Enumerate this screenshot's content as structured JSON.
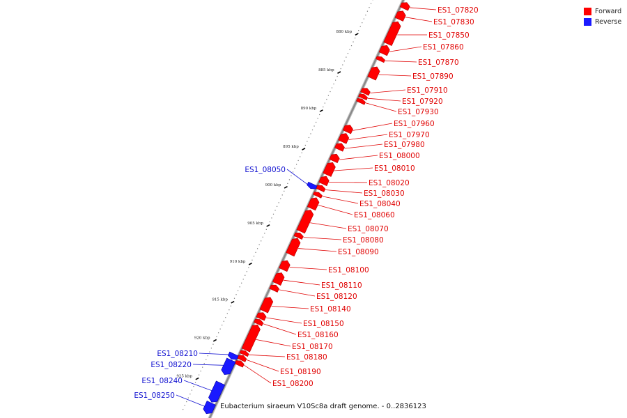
{
  "colors": {
    "forward": "#ff0000",
    "reverse": "#1a1aff",
    "backbone": "#888888"
  },
  "legend": [
    {
      "label": "Forward",
      "color": "#ff0000"
    },
    {
      "label": "Reverse",
      "color": "#1a1aff"
    }
  ],
  "caption": "Eubacterium siraeum V10Sc8a draft genome. - 0..2836123",
  "ticks": [
    {
      "pos": 880,
      "label": "880 kbp"
    },
    {
      "pos": 885,
      "label": "885 kbp"
    },
    {
      "pos": 890,
      "label": "890 kbp"
    },
    {
      "pos": 895,
      "label": "895 kbp"
    },
    {
      "pos": 900,
      "label": "900 kbp"
    },
    {
      "pos": 905,
      "label": "905 kbp"
    },
    {
      "pos": 910,
      "label": "910 kbp"
    },
    {
      "pos": 915,
      "label": "915 kbp"
    },
    {
      "pos": 920,
      "label": "920 kbp"
    },
    {
      "pos": 925,
      "label": "925 kbp"
    }
  ],
  "genes": [
    {
      "id": "ES1_07820",
      "strand": "forward",
      "start": 874.1,
      "end": 874.9
    },
    {
      "id": "ES1_07830",
      "strand": "forward",
      "start": 875.2,
      "end": 876.3
    },
    {
      "id": "ES1_07850",
      "strand": "forward",
      "start": 876.6,
      "end": 879.5
    },
    {
      "id": "ES1_07860",
      "strand": "forward",
      "start": 879.7,
      "end": 880.8
    },
    {
      "id": "ES1_07870",
      "strand": "forward",
      "start": 881.2,
      "end": 881.7
    },
    {
      "id": "ES1_07890",
      "strand": "forward",
      "start": 882.5,
      "end": 884.0
    },
    {
      "id": "ES1_07910",
      "strand": "forward",
      "start": 885.3,
      "end": 886.0
    },
    {
      "id": "ES1_07920",
      "strand": "forward",
      "start": 886.1,
      "end": 886.6
    },
    {
      "id": "ES1_07930",
      "strand": "forward",
      "start": 886.7,
      "end": 887.2
    },
    {
      "id": "ES1_07960",
      "strand": "forward",
      "start": 890.1,
      "end": 891.0
    },
    {
      "id": "ES1_07970",
      "strand": "forward",
      "start": 891.2,
      "end": 892.3
    },
    {
      "id": "ES1_07980",
      "strand": "forward",
      "start": 892.5,
      "end": 893.3
    },
    {
      "id": "ES1_08000",
      "strand": "forward",
      "start": 893.9,
      "end": 894.8
    },
    {
      "id": "ES1_08010",
      "strand": "forward",
      "start": 895.0,
      "end": 896.6
    },
    {
      "id": "ES1_08020",
      "strand": "forward",
      "start": 896.8,
      "end": 897.8
    },
    {
      "id": "ES1_08030",
      "strand": "forward",
      "start": 898.0,
      "end": 898.6
    },
    {
      "id": "ES1_08040",
      "strand": "forward",
      "start": 898.9,
      "end": 899.4
    },
    {
      "id": "ES1_08050",
      "strand": "reverse",
      "start": 898.3,
      "end": 898.9
    },
    {
      "id": "ES1_08060",
      "strand": "forward",
      "start": 899.6,
      "end": 901.0
    },
    {
      "id": "ES1_08070",
      "strand": "forward",
      "start": 901.2,
      "end": 904.0
    },
    {
      "id": "ES1_08080",
      "strand": "forward",
      "start": 904.2,
      "end": 904.8
    },
    {
      "id": "ES1_08090",
      "strand": "forward",
      "start": 904.9,
      "end": 907.0
    },
    {
      "id": "ES1_08100",
      "strand": "forward",
      "start": 907.8,
      "end": 909.0
    },
    {
      "id": "ES1_08110",
      "strand": "forward",
      "start": 909.4,
      "end": 910.8
    },
    {
      "id": "ES1_08120",
      "strand": "forward",
      "start": 911.0,
      "end": 911.7
    },
    {
      "id": "ES1_08140",
      "strand": "forward",
      "start": 912.6,
      "end": 914.4
    },
    {
      "id": "ES1_08150",
      "strand": "forward",
      "start": 914.6,
      "end": 915.4
    },
    {
      "id": "ES1_08160",
      "strand": "forward",
      "start": 915.5,
      "end": 916.1
    },
    {
      "id": "ES1_08170",
      "strand": "forward",
      "start": 916.2,
      "end": 919.5
    },
    {
      "id": "ES1_08180",
      "strand": "forward",
      "start": 919.6,
      "end": 920.1
    },
    {
      "id": "ES1_08190",
      "strand": "forward",
      "start": 920.2,
      "end": 920.8
    },
    {
      "id": "ES1_08200",
      "strand": "forward",
      "start": 920.9,
      "end": 921.5
    },
    {
      "id": "ES1_08210",
      "strand": "reverse",
      "start": 920.5,
      "end": 921.2
    },
    {
      "id": "ES1_08220",
      "strand": "reverse",
      "start": 921.3,
      "end": 923.2
    },
    {
      "id": "ES1_08240",
      "strand": "reverse",
      "start": 924.3,
      "end": 926.8
    },
    {
      "id": "ES1_08250",
      "strand": "reverse",
      "start": 926.9,
      "end": 928.3
    }
  ]
}
